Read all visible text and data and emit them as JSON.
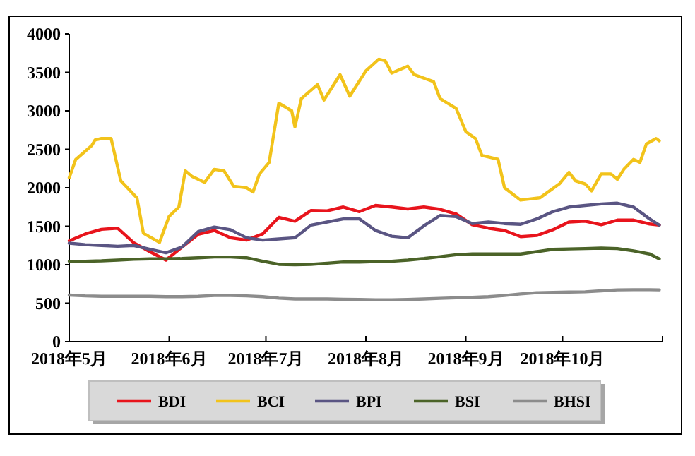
{
  "chart_data": {
    "type": "line",
    "x": [
      "2018-05-01",
      "2018-05-06",
      "2018-05-11",
      "2018-05-16",
      "2018-05-21",
      "2018-05-26",
      "2018-05-31",
      "2018-06-05",
      "2018-06-10",
      "2018-06-15",
      "2018-06-20",
      "2018-06-25",
      "2018-06-30",
      "2018-07-05",
      "2018-07-10",
      "2018-07-15",
      "2018-07-20",
      "2018-07-25",
      "2018-07-30",
      "2018-08-04",
      "2018-08-09",
      "2018-08-14",
      "2018-08-19",
      "2018-08-24",
      "2018-08-29",
      "2018-09-03",
      "2018-09-08",
      "2018-09-13",
      "2018-09-18",
      "2018-09-23",
      "2018-09-28",
      "2018-10-03",
      "2018-10-08",
      "2018-10-13",
      "2018-10-18",
      "2018-10-23",
      "2018-10-28",
      "2018-10-31"
    ],
    "xlim": [
      "2018-05-01",
      "2018-11-01"
    ],
    "xticks": [
      {
        "value": "2018-05-01",
        "label": "2018年5月"
      },
      {
        "value": "2018-06-01",
        "label": "2018年6月"
      },
      {
        "value": "2018-07-01",
        "label": "2018年7月"
      },
      {
        "value": "2018-08-01",
        "label": "2018年8月"
      },
      {
        "value": "2018-09-01",
        "label": "2018年9月"
      },
      {
        "value": "2018-10-01",
        "label": "2018年10月"
      },
      {
        "value": "2018-11-01",
        "label": null
      }
    ],
    "ylim": [
      0,
      4000
    ],
    "yticks": [
      0,
      500,
      1000,
      1500,
      2000,
      2500,
      3000,
      3500,
      4000
    ],
    "legend": "bottom",
    "series": [
      {
        "name": "BDI",
        "color": "#e8141c",
        "values": [
          1310,
          1400,
          1460,
          1475,
          1285,
          1170,
          1060,
          1230,
          1395,
          1445,
          1350,
          1320,
          1400,
          1615,
          1565,
          1705,
          1700,
          1750,
          1690,
          1770,
          1750,
          1725,
          1750,
          1720,
          1660,
          1520,
          1475,
          1445,
          1365,
          1380,
          1455,
          1555,
          1565,
          1520,
          1580,
          1580,
          1530,
          1515
        ]
      },
      {
        "name": "BCI",
        "color": "#f2c31b",
        "x": [
          "2018-05-01",
          "2018-05-03",
          "2018-05-08",
          "2018-05-09",
          "2018-05-11",
          "2018-05-14",
          "2018-05-17",
          "2018-05-22",
          "2018-05-24",
          "2018-05-29",
          "2018-06-01",
          "2018-06-04",
          "2018-06-06",
          "2018-06-08",
          "2018-06-12",
          "2018-06-15",
          "2018-06-18",
          "2018-06-21",
          "2018-06-25",
          "2018-06-27",
          "2018-06-29",
          "2018-07-02",
          "2018-07-05",
          "2018-07-09",
          "2018-07-10",
          "2018-07-12",
          "2018-07-17",
          "2018-07-19",
          "2018-07-24",
          "2018-07-27",
          "2018-08-01",
          "2018-08-05",
          "2018-08-07",
          "2018-08-09",
          "2018-08-14",
          "2018-08-16",
          "2018-08-22",
          "2018-08-24",
          "2018-08-29",
          "2018-09-01",
          "2018-09-04",
          "2018-09-06",
          "2018-09-11",
          "2018-09-13",
          "2018-09-18",
          "2018-09-24",
          "2018-09-30",
          "2018-10-03",
          "2018-10-05",
          "2018-10-08",
          "2018-10-10",
          "2018-10-13",
          "2018-10-16",
          "2018-10-18",
          "2018-10-20",
          "2018-10-23",
          "2018-10-25",
          "2018-10-27",
          "2018-10-30",
          "2018-10-31"
        ],
        "values": [
          2130,
          2367,
          2550,
          2620,
          2640,
          2640,
          2090,
          1870,
          1410,
          1290,
          1630,
          1750,
          2220,
          2150,
          2070,
          2240,
          2220,
          2020,
          2000,
          1945,
          2180,
          2330,
          3100,
          3000,
          2790,
          3160,
          3340,
          3140,
          3470,
          3190,
          3520,
          3670,
          3650,
          3490,
          3580,
          3470,
          3380,
          3160,
          3030,
          2730,
          2640,
          2420,
          2370,
          2000,
          1840,
          1870,
          2050,
          2200,
          2090,
          2050,
          1960,
          2180,
          2180,
          2110,
          2240,
          2370,
          2330,
          2570,
          2640,
          2610
        ]
      },
      {
        "name": "BPI",
        "color": "#5a5583",
        "values": [
          1280,
          1260,
          1250,
          1240,
          1250,
          1200,
          1155,
          1230,
          1430,
          1490,
          1455,
          1350,
          1320,
          1335,
          1350,
          1515,
          1555,
          1595,
          1595,
          1445,
          1370,
          1350,
          1505,
          1640,
          1625,
          1535,
          1555,
          1535,
          1525,
          1595,
          1690,
          1750,
          1770,
          1790,
          1800,
          1750,
          1595,
          1515
        ]
      },
      {
        "name": "BSI",
        "color": "#4b6328",
        "values": [
          1045,
          1045,
          1050,
          1060,
          1070,
          1075,
          1075,
          1080,
          1090,
          1100,
          1100,
          1090,
          1045,
          1005,
          1000,
          1005,
          1020,
          1035,
          1035,
          1040,
          1045,
          1060,
          1080,
          1105,
          1130,
          1140,
          1140,
          1140,
          1140,
          1170,
          1200,
          1205,
          1210,
          1215,
          1210,
          1180,
          1140,
          1075
        ]
      },
      {
        "name": "BHSI",
        "color": "#8c8c8c",
        "values": [
          605,
          595,
          590,
          590,
          590,
          590,
          585,
          585,
          590,
          600,
          600,
          595,
          585,
          565,
          555,
          555,
          555,
          550,
          548,
          545,
          545,
          548,
          555,
          563,
          570,
          575,
          585,
          600,
          620,
          636,
          640,
          645,
          648,
          660,
          673,
          675,
          675,
          673
        ]
      }
    ]
  }
}
